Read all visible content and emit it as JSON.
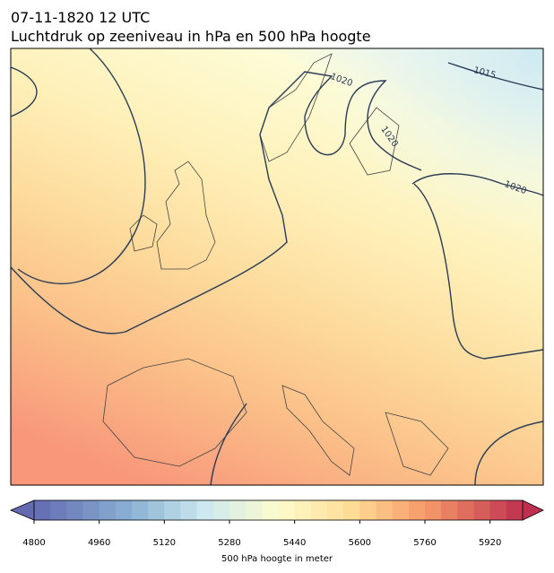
{
  "header": {
    "title_line1": "07-11-1820 12 UTC",
    "title_line2": "Luchtdruk op zeeniveau in hPa en 500 hPa hoogte"
  },
  "contour_labels": [
    1020,
    1020,
    1020,
    1015
  ],
  "colorbar": {
    "lim": [
      4800,
      6000
    ],
    "ticks": [
      4800,
      4960,
      5120,
      5280,
      5440,
      5600,
      5760,
      5920
    ],
    "label": "500 hPa hoogte in meter"
  }
}
